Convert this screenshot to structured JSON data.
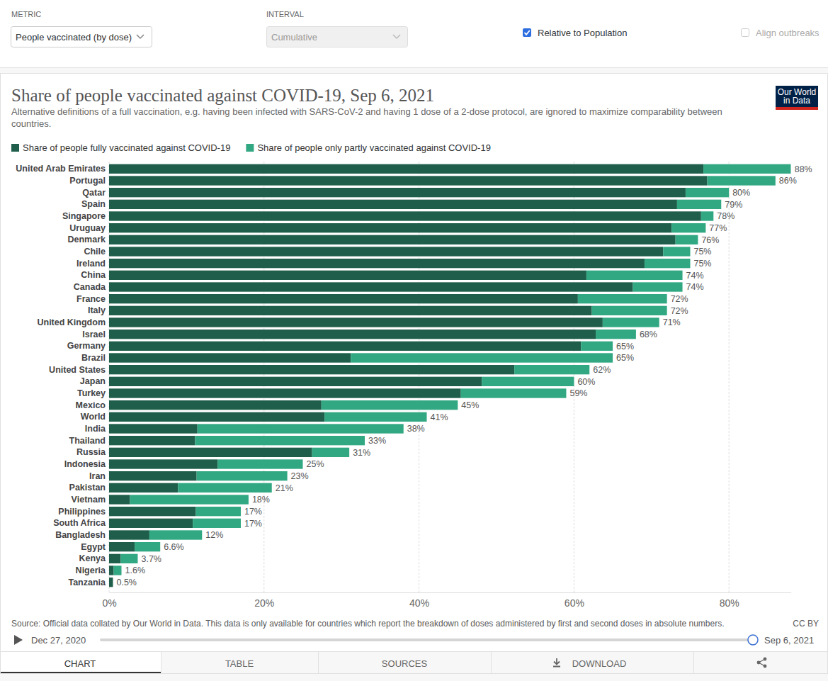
{
  "controls": {
    "metric_label": "METRIC",
    "metric_value": "People vaccinated (by dose)",
    "interval_label": "INTERVAL",
    "interval_value": "Cumulative",
    "relative_label": "Relative to Population",
    "align_label": "Align outbreaks"
  },
  "logo": "Our World in Data",
  "chart_data": {
    "type": "bar",
    "orientation": "horizontal",
    "stacked": true,
    "grid": true,
    "legend": "top",
    "title": "Share of people vaccinated against COVID-19, Sep 6, 2021",
    "subtitle": "Alternative definitions of a full vaccination, e.g. having been infected with SARS-CoV-2 and having 1 dose of a 2-dose protocol, are ignored to maximize comparability between countries.",
    "categories": [
      "United Arab Emirates",
      "Portugal",
      "Qatar",
      "Spain",
      "Singapore",
      "Uruguay",
      "Denmark",
      "Chile",
      "Ireland",
      "China",
      "Canada",
      "France",
      "Italy",
      "United Kingdom",
      "Israel",
      "Germany",
      "Brazil",
      "United States",
      "Japan",
      "Turkey",
      "Mexico",
      "World",
      "India",
      "Thailand",
      "Russia",
      "Indonesia",
      "Iran",
      "Pakistan",
      "Vietnam",
      "Philippines",
      "South Africa",
      "Bangladesh",
      "Egypt",
      "Kenya",
      "Nigeria",
      "Tanzania"
    ],
    "series": [
      {
        "name": "Share of people fully vaccinated against COVID-19",
        "color": "#1f5e4a",
        "values": [
          76.7,
          77.2,
          74.4,
          73.3,
          76.4,
          72.6,
          73.1,
          71.5,
          69.1,
          61.6,
          67.6,
          60.5,
          62.3,
          63.7,
          62.8,
          60.9,
          31.2,
          52.3,
          48.1,
          45.4,
          27.4,
          27.8,
          11.4,
          11.1,
          26.2,
          14,
          11.3,
          8.9,
          2.7,
          11.2,
          10.8,
          5.2,
          3.3,
          1.5,
          0.6,
          0.5
        ]
      },
      {
        "name": "Share of people only partly vaccinated against COVID-19",
        "color": "#32a882",
        "values": [
          11.3,
          8.8,
          5.6,
          5.7,
          1.6,
          4.4,
          2.9,
          3.5,
          5.9,
          12.4,
          6.4,
          11.5,
          9.7,
          7.3,
          5.2,
          4.1,
          33.8,
          9.7,
          11.9,
          13.6,
          17.6,
          13.2,
          26.6,
          21.9,
          4.8,
          11,
          11.7,
          12.1,
          15.3,
          5.8,
          6.2,
          6.8,
          3.3,
          2.2,
          1,
          0
        ]
      }
    ],
    "totals": [
      88,
      86,
      80,
      79,
      78,
      77,
      76,
      75,
      75,
      74,
      74,
      72,
      72,
      71,
      68,
      65,
      65,
      62,
      60,
      59,
      45,
      41,
      38,
      33,
      31,
      25,
      23,
      21,
      18,
      17,
      17,
      12,
      6.6,
      3.7,
      1.6,
      0.5
    ],
    "total_labels": [
      "88%",
      "86%",
      "80%",
      "79%",
      "78%",
      "77%",
      "76%",
      "75%",
      "75%",
      "74%",
      "74%",
      "72%",
      "72%",
      "71%",
      "68%",
      "65%",
      "65%",
      "62%",
      "60%",
      "59%",
      "45%",
      "41%",
      "38%",
      "33%",
      "31%",
      "25%",
      "23%",
      "21%",
      "18%",
      "17%",
      "17%",
      "12%",
      "6.6%",
      "3.7%",
      "1.6%",
      "0.5%"
    ],
    "xlim": [
      0,
      88
    ],
    "xticks": [
      {
        "value": 0,
        "label": "0%"
      },
      {
        "value": 20,
        "label": "20%"
      },
      {
        "value": 40,
        "label": "40%"
      },
      {
        "value": 60,
        "label": "60%"
      },
      {
        "value": 80,
        "label": "80%"
      }
    ]
  },
  "footer": {
    "source": "Source: Official data collated by Our World in Data. This data is only available for countries which report the breakdown of doses administered by first and second doses in absolute numbers.",
    "license": "CC BY"
  },
  "timeline": {
    "start": "Dec 27, 2020",
    "end": "Sep 6, 2021"
  },
  "tabs": [
    "CHART",
    "TABLE",
    "SOURCES",
    "DOWNLOAD"
  ]
}
